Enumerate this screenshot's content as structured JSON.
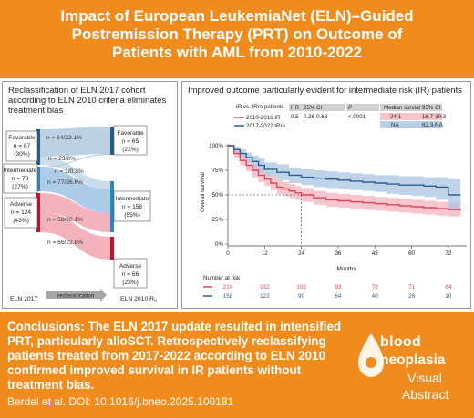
{
  "banner": {
    "title_line1": "Impact of European LeukemiaNet (ELN)–Guided",
    "title_line2": "Postremission Therapy (PRT) on Outcome of",
    "title_line3": "Patients with AML from 2010-2022"
  },
  "left_panel": {
    "title": "Reclassification of ELN 2017 cohort according to ELN 2010 criteria eliminates treatment bias",
    "left_nodes": [
      {
        "line1": "Favorable",
        "line2": "n = 87",
        "line3": "(30%)"
      },
      {
        "line1": "Intermediate",
        "line2": "n = 78",
        "line3": "(27%)"
      },
      {
        "line1": "Adverse",
        "line2": "n = 124",
        "line3": "(43%)"
      }
    ],
    "right_nodes": [
      {
        "line1": "Favorable",
        "line2": "n = 65",
        "line3": "(22%)"
      },
      {
        "line1": "Intermediate",
        "line2": "n = 158",
        "line3": "(55%)"
      },
      {
        "line1": "Adverse",
        "line2": "n = 66",
        "line3": "(23%)"
      }
    ],
    "flows": [
      {
        "label": "n = 64/22.1%"
      },
      {
        "label": "n = 23/8%"
      },
      {
        "label": "n = 1/0.3%"
      },
      {
        "label": "n = 77/26.6%"
      },
      {
        "label": "n = 58/20.1%"
      },
      {
        "label": "n = 66/22.8%"
      }
    ],
    "axis_left": "ELN 2017",
    "axis_middle": "reclassification",
    "axis_right": "ELN 2010 R",
    "axis_right_sub": "N",
    "colors": {
      "favorable": "#1f5d8a",
      "intermediate": "#2e86c1",
      "adverse": "#c8102e",
      "fav_flow": "#b9cfe1",
      "int_flow": "#a8c9e6",
      "adv_flow": "#f2aeb8"
    }
  },
  "right_panel": {
    "title": "Improved outcome particularly evident for intermediate risk (IR) patients",
    "table": {
      "legend_title": "IR vs. IRre patients",
      "headers": [
        "HR",
        "95% CI",
        "P",
        "Median survial",
        "95% CI"
      ],
      "row1": {
        "hr": "0.5",
        "ci": "0.36-0.68",
        "p": "<.0001",
        "median": "24.1",
        "ci2": "16.7-39.3"
      },
      "row2": {
        "median": "NA",
        "ci2": "62.3-NA"
      }
    },
    "legend": [
      {
        "name": "2010-2016 IR",
        "color": "#e0455a"
      },
      {
        "name": "2017-2022 IRre",
        "color": "#2f5f8f"
      }
    ],
    "number_at_risk_label": "Number at risk",
    "risk_rows": [
      [
        "224",
        "132",
        "106",
        "93",
        "78",
        "71",
        "64"
      ],
      [
        "158",
        "122",
        "90",
        "64",
        "40",
        "26",
        "10"
      ]
    ]
  },
  "chart_data": {
    "type": "line",
    "title": "",
    "xlabel": "Months",
    "ylabel": "Overall survival",
    "xlim": [
      0,
      78
    ],
    "ylim": [
      0,
      100
    ],
    "x_ticks": [
      0,
      12,
      24,
      36,
      48,
      60,
      72
    ],
    "y_ticks": [
      "0%",
      "25%",
      "50%",
      "75%",
      "100%"
    ],
    "series": [
      {
        "name": "2010-2016 IR",
        "color": "#e0455a",
        "band_color": "#f2b3bd",
        "x": [
          0,
          2,
          4,
          6,
          8,
          10,
          12,
          14,
          16,
          18,
          20,
          22,
          24,
          28,
          32,
          36,
          40,
          44,
          48,
          52,
          56,
          60,
          64,
          68,
          72,
          76
        ],
        "y": [
          100,
          92,
          85,
          80,
          75,
          70,
          66,
          62,
          58,
          56,
          54,
          52,
          50,
          47,
          45,
          44,
          43,
          42,
          41,
          40,
          39,
          38,
          37,
          36,
          35,
          34
        ],
        "lower": [
          100,
          88,
          80,
          74,
          68,
          63,
          59,
          55,
          51,
          49,
          47,
          45,
          43,
          40,
          38,
          37,
          36,
          35,
          34,
          33,
          32,
          31,
          30,
          29,
          28,
          27
        ],
        "upper": [
          100,
          96,
          90,
          86,
          82,
          77,
          73,
          69,
          65,
          63,
          61,
          59,
          57,
          54,
          52,
          51,
          50,
          49,
          48,
          47,
          46,
          45,
          44,
          43,
          42,
          41
        ]
      },
      {
        "name": "2017-2022 IRre",
        "color": "#2f5f8f",
        "band_color": "#a9c6e1",
        "x": [
          0,
          2,
          4,
          6,
          8,
          10,
          12,
          16,
          20,
          24,
          28,
          32,
          36,
          40,
          44,
          48,
          52,
          56,
          60,
          64,
          68,
          72,
          76
        ],
        "y": [
          100,
          96,
          92,
          88,
          84,
          80,
          76,
          73,
          70,
          68,
          67,
          66,
          65,
          64,
          63,
          62,
          61,
          60,
          60,
          59,
          58,
          50,
          50
        ],
        "lower": [
          100,
          93,
          88,
          83,
          78,
          73,
          69,
          65,
          62,
          60,
          58,
          57,
          56,
          55,
          54,
          53,
          51,
          50,
          49,
          48,
          45,
          34,
          34
        ],
        "upper": [
          100,
          99,
          96,
          93,
          90,
          87,
          83,
          81,
          78,
          76,
          75,
          74,
          73,
          72,
          71,
          70,
          70,
          69,
          69,
          68,
          68,
          66,
          66
        ]
      }
    ],
    "median_marker": {
      "x": 24,
      "y": 50
    }
  },
  "conclusion": {
    "label": "Conclusions:",
    "text": "The ELN 2017 update resulted in intensified PRT, particularly alloSCT. Retrospectively reclassifying patients treated from 2017-2022 according to ELN 2010 confirmed improved survival in IR patients without treatment bias.",
    "citation": "Berdel et al. DOI: 10.1016/j.bneo.2025.100181"
  },
  "logo": {
    "line1": "blood",
    "line2": "neoplasia",
    "line3": "Visual",
    "line4": "Abstract"
  }
}
